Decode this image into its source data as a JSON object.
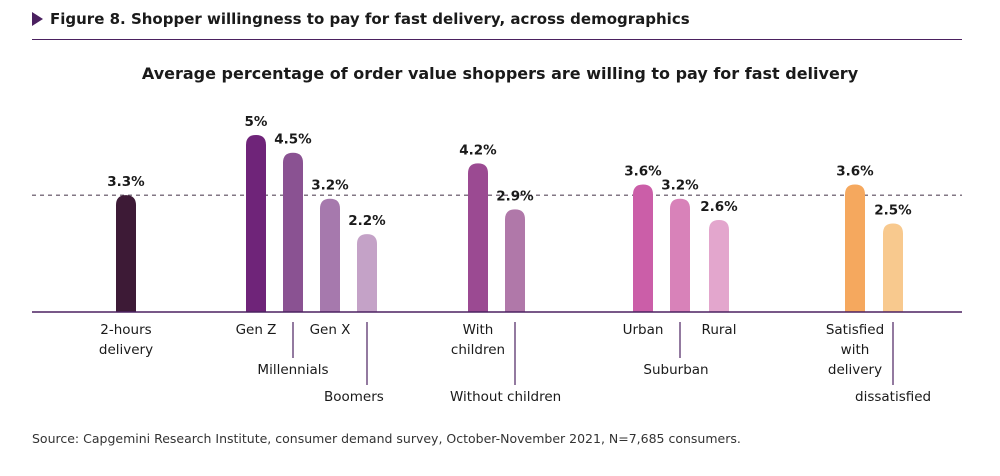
{
  "figure": {
    "title": "Figure 8. Shopper willingness to pay for fast delivery, across demographics",
    "accent": "#4b2160"
  },
  "chart_data": {
    "type": "bar",
    "title": "Average percentage of order value shoppers are willing to pay for fast delivery",
    "ylim": [
      0,
      5
    ],
    "grid": false,
    "reference_line": 3.3,
    "bars": [
      {
        "category": "2-hours delivery",
        "value": 3.3,
        "label": "3.3%",
        "color": "#3d1a36"
      },
      {
        "category": "Gen Z",
        "value": 5,
        "label": "5%",
        "color": "#6f2479"
      },
      {
        "category": "Millennials",
        "value": 4.5,
        "label": "4.5%",
        "color": "#8a5292"
      },
      {
        "category": "Gen X",
        "value": 3.2,
        "label": "3.2%",
        "color": "#a679ad"
      },
      {
        "category": "Boomers",
        "value": 2.2,
        "label": "2.2%",
        "color": "#c4a2c7"
      },
      {
        "category": "With children",
        "value": 4.2,
        "label": "4.2%",
        "color": "#9b4a92"
      },
      {
        "category": "Without children",
        "value": 2.9,
        "label": "2.9%",
        "color": "#b078a9"
      },
      {
        "category": "Urban",
        "value": 3.6,
        "label": "3.6%",
        "color": "#cb5ea8"
      },
      {
        "category": "Suburban",
        "value": 3.2,
        "label": "3.2%",
        "color": "#d882b9"
      },
      {
        "category": "Rural",
        "value": 2.6,
        "label": "2.6%",
        "color": "#e3a6cd"
      },
      {
        "category": "Satisfied with delivery",
        "value": 3.6,
        "label": "3.6%",
        "color": "#f5a85e"
      },
      {
        "category": "dissatisfied",
        "value": 2.5,
        "label": "2.5%",
        "color": "#f8c98e"
      }
    ]
  },
  "source": "Source: Capgemini Research Institute, consumer demand survey, October-November 2021, N=7,685 consumers."
}
